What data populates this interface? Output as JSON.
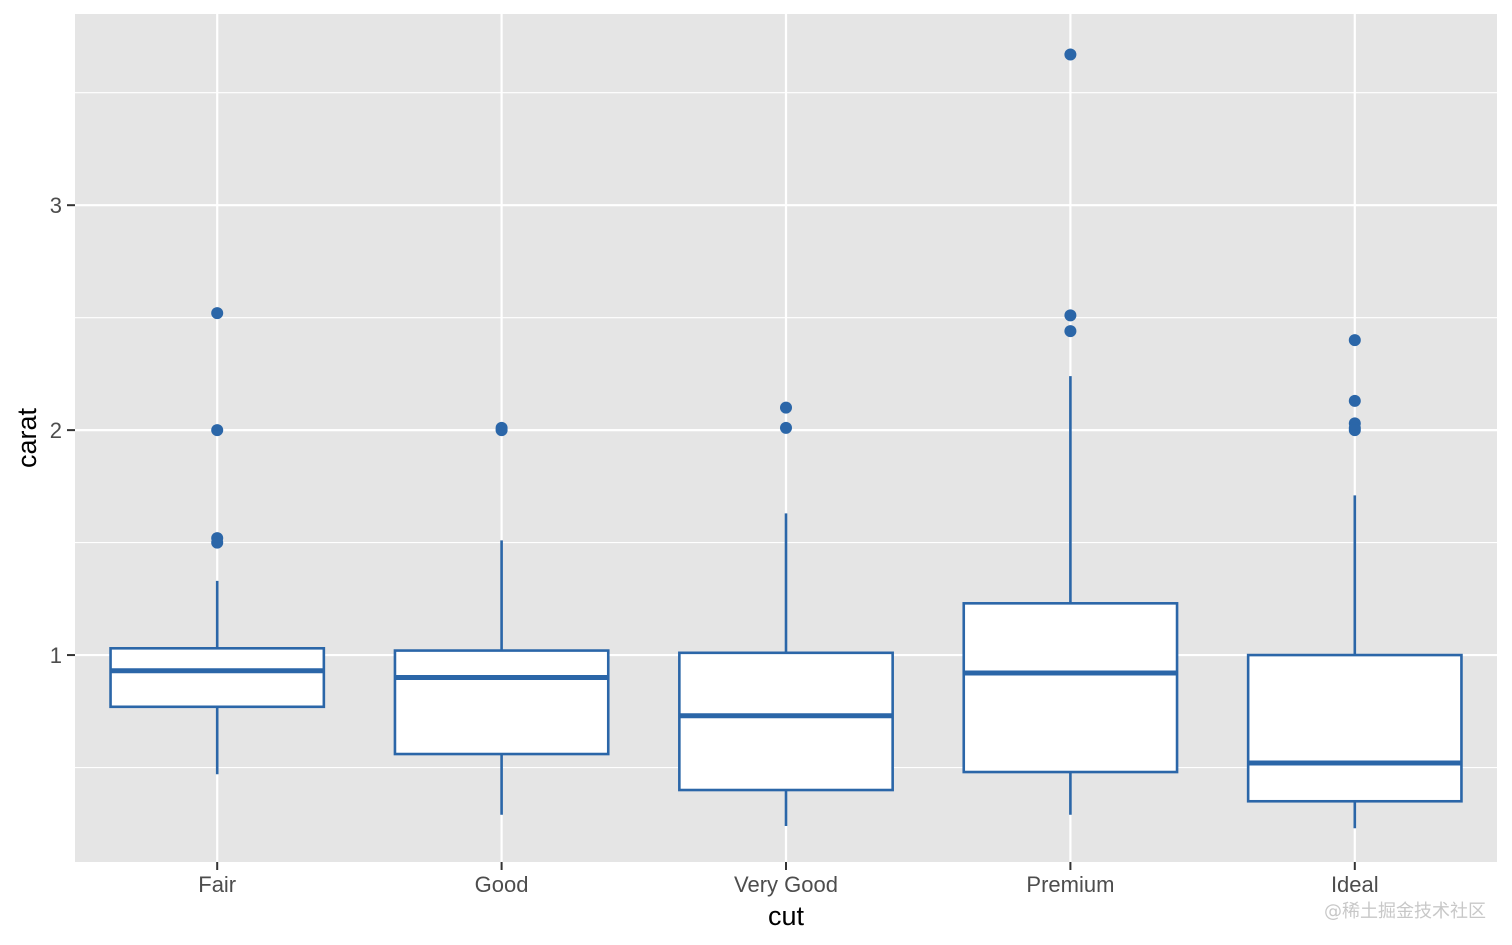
{
  "chart_data": {
    "type": "boxplot",
    "xlabel": "cut",
    "ylabel": "carat",
    "categories": [
      "Fair",
      "Good",
      "Very Good",
      "Premium",
      "Ideal"
    ],
    "ylim": [
      0.08,
      3.85
    ],
    "yticks": [
      1,
      2,
      3
    ],
    "grid": true,
    "colors": {
      "panel": "#e5e5e5",
      "grid": "#ffffff",
      "box": "#2b66a8",
      "box_fill": "#ffffff"
    },
    "boxes": [
      {
        "category": "Fair",
        "whisker_low": 0.47,
        "q1": 0.77,
        "median": 0.93,
        "q3": 1.03,
        "whisker_high": 1.33,
        "outliers": [
          2.52,
          2.0,
          1.52,
          1.5
        ]
      },
      {
        "category": "Good",
        "whisker_low": 0.29,
        "q1": 0.56,
        "median": 0.9,
        "q3": 1.02,
        "whisker_high": 1.51,
        "outliers": [
          2.01,
          2.0
        ]
      },
      {
        "category": "Very Good",
        "whisker_low": 0.24,
        "q1": 0.4,
        "median": 0.73,
        "q3": 1.01,
        "whisker_high": 1.63,
        "outliers": [
          2.1,
          2.01
        ]
      },
      {
        "category": "Premium",
        "whisker_low": 0.29,
        "q1": 0.48,
        "median": 0.92,
        "q3": 1.23,
        "whisker_high": 2.24,
        "outliers": [
          3.67,
          2.51,
          2.44
        ]
      },
      {
        "category": "Ideal",
        "whisker_low": 0.23,
        "q1": 0.35,
        "median": 0.52,
        "q3": 1.0,
        "whisker_high": 1.71,
        "outliers": [
          2.4,
          2.13,
          2.03,
          2.01,
          2.0
        ]
      }
    ]
  },
  "watermark": "@稀土掘金技术社区"
}
